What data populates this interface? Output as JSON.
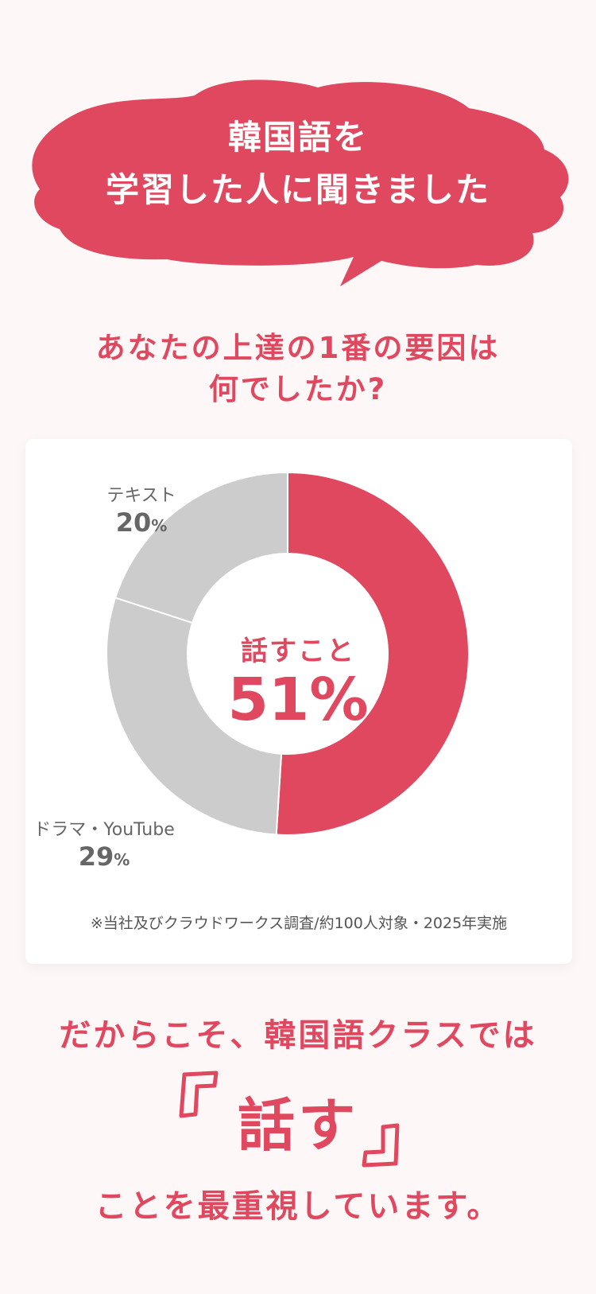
{
  "header": {
    "line1": "韓国語を",
    "line2": "学習した人に聞きました"
  },
  "question": {
    "line1": "あなたの上達の1番の要因は",
    "line2": "何でしたか?"
  },
  "colors": {
    "accent": "#e0485f",
    "gray_segment": "#cccccc",
    "background": "#fdf7f7",
    "card": "#ffffff"
  },
  "chart_data": {
    "type": "pie",
    "title": "",
    "slices": [
      {
        "label": "話すこと",
        "value": 51,
        "display": "51%",
        "color": "#e0485f"
      },
      {
        "label": "ドラマ・YouTube",
        "value": 29,
        "display": "29",
        "unit": "%",
        "color": "#cccccc"
      },
      {
        "label": "テキスト",
        "value": 20,
        "display": "20",
        "unit": "%",
        "color": "#cccccc"
      }
    ]
  },
  "note": "※当社及びクラウドワークス調査/約100人対象・2025年実施",
  "footer": {
    "tagline": "だからこそ、韓国語クラスでは",
    "emphasis": "話す",
    "closing": "ことを最重視しています。"
  }
}
